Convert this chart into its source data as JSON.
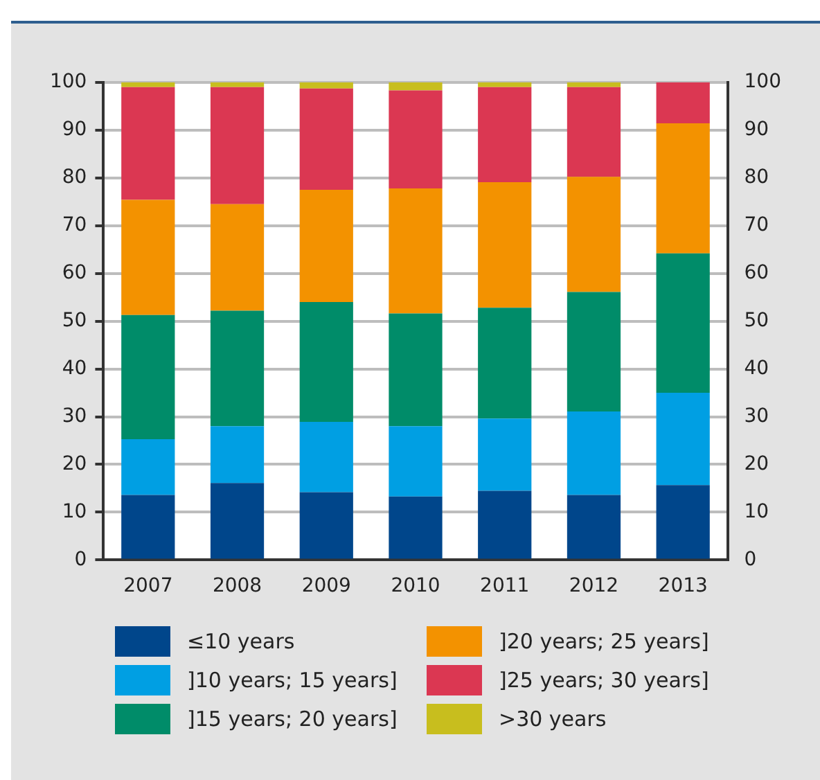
{
  "chart_data": {
    "type": "bar",
    "stacked": true,
    "categories": [
      "2007",
      "2008",
      "2009",
      "2010",
      "2011",
      "2012",
      "2013"
    ],
    "series": [
      {
        "name": "≤10 years",
        "color": "#00468b",
        "values": [
          13.6,
          16.1,
          14.2,
          13.3,
          14.5,
          13.6,
          15.7
        ]
      },
      {
        "name": "]10 years; 15 years]",
        "color": "#009fe3",
        "values": [
          11.7,
          11.9,
          14.7,
          14.7,
          15.1,
          17.5,
          19.3
        ]
      },
      {
        "name": "]15 years; 20 years]",
        "color": "#008c69",
        "values": [
          26.0,
          24.2,
          25.1,
          23.6,
          23.2,
          25.0,
          29.2
        ]
      },
      {
        "name": "]20 years; 25 years]",
        "color": "#f39200",
        "values": [
          24.1,
          22.3,
          23.5,
          26.2,
          26.3,
          24.1,
          27.2
        ]
      },
      {
        "name": "]25 years; 30 years]",
        "color": "#db3752",
        "values": [
          23.6,
          24.5,
          21.2,
          20.5,
          19.9,
          18.8,
          8.6
        ]
      },
      {
        "name": ">30 years",
        "color": "#c8be1e",
        "values": [
          1.0,
          1.0,
          1.3,
          1.7,
          1.0,
          1.0,
          0
        ]
      }
    ],
    "ylim": [
      0,
      100
    ],
    "yticks": [
      0,
      10,
      20,
      30,
      40,
      50,
      60,
      70,
      80,
      90,
      100
    ],
    "y2lim": [
      0,
      100
    ],
    "y2ticks": [
      0,
      10,
      20,
      30,
      40,
      50,
      60,
      70,
      80,
      90,
      100
    ],
    "grid": "y",
    "legend": "bottom"
  }
}
